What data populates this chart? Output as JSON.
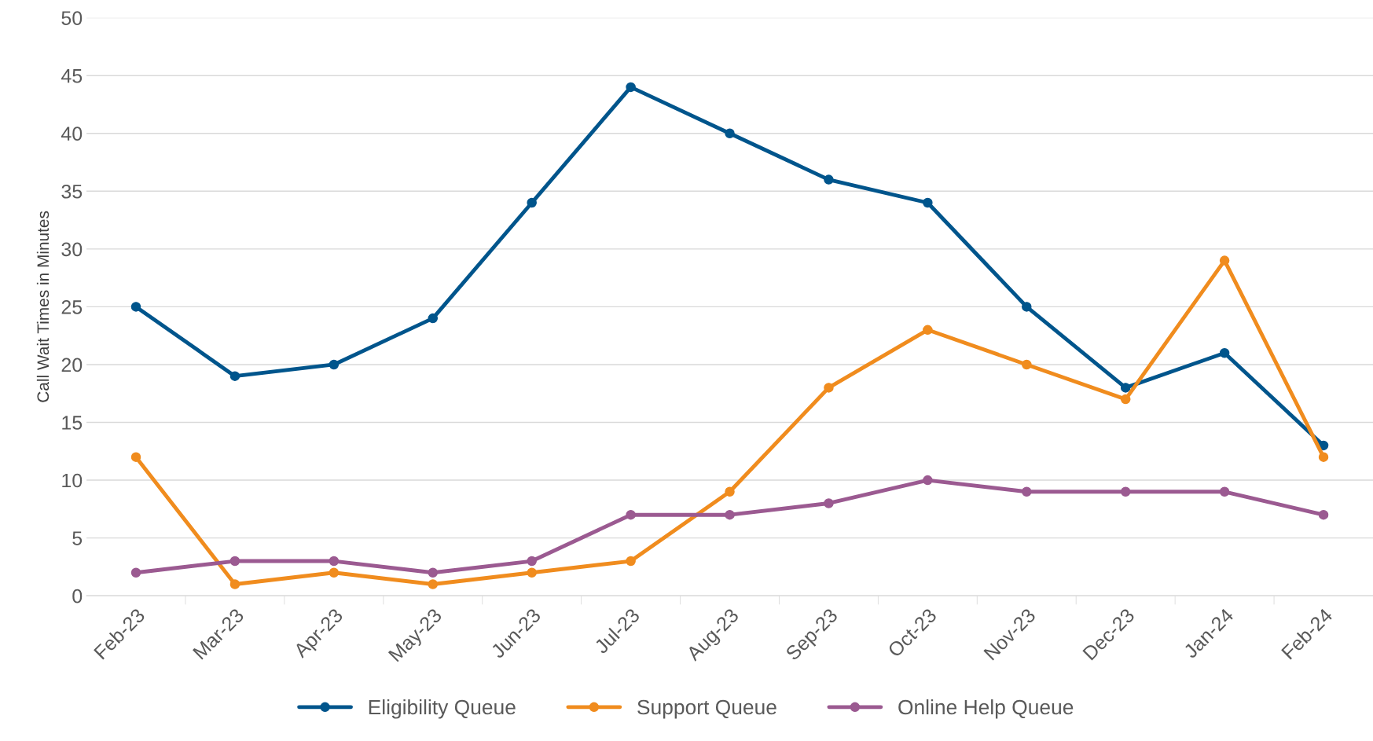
{
  "chart_data": {
    "type": "line",
    "ylabel": "Call Wait Times in Minutes",
    "categories": [
      "Feb-23",
      "Mar-23",
      "Apr-23",
      "May-23",
      "Jun-23",
      "Jul-23",
      "Aug-23",
      "Sep-23",
      "Oct-23",
      "Nov-23",
      "Dec-23",
      "Jan-24",
      "Feb-24"
    ],
    "series": [
      {
        "name": "Eligibility Queue",
        "color": "#00558c",
        "values": [
          25,
          19,
          20,
          24,
          34,
          44,
          40,
          36,
          34,
          25,
          18,
          21,
          13
        ]
      },
      {
        "name": "Support Queue",
        "color": "#f08c1e",
        "values": [
          12,
          1,
          2,
          1,
          2,
          3,
          9,
          18,
          23,
          20,
          17,
          29,
          12
        ]
      },
      {
        "name": "Online Help Queue",
        "color": "#9b5a91",
        "values": [
          2,
          3,
          3,
          2,
          3,
          7,
          7,
          8,
          10,
          9,
          9,
          9,
          7
        ]
      }
    ],
    "ylim": [
      0,
      50
    ],
    "yticks": [
      0,
      5,
      10,
      15,
      20,
      25,
      30,
      35,
      40,
      45,
      50
    ],
    "grid": "y",
    "legend": "bottom",
    "marker": "circle",
    "line_style": "solid"
  }
}
